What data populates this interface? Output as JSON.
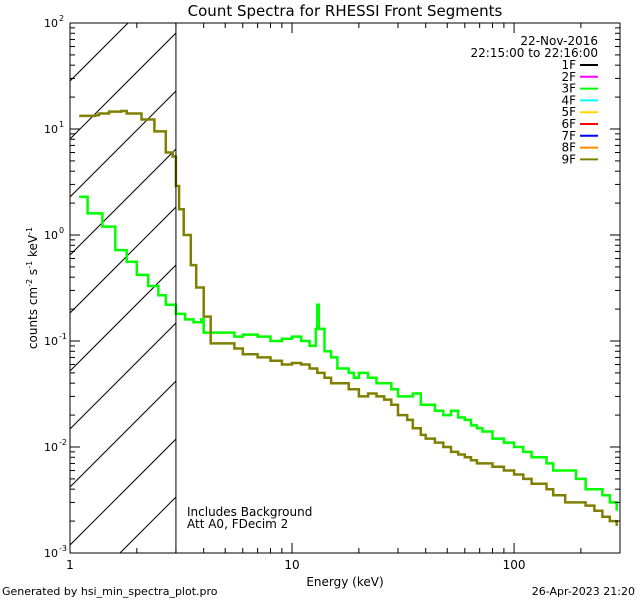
{
  "chart_data": {
    "type": "line",
    "title": "Count Spectra for RHESSI Front Segments",
    "xlabel": "Energy (keV)",
    "ylabel_parts": [
      "counts cm",
      "-2",
      " s",
      "-1",
      " keV",
      "-1"
    ],
    "xscale": "log",
    "yscale": "log",
    "xlim": [
      1,
      300
    ],
    "ylim": [
      0.001,
      100
    ],
    "x_ticks": [
      {
        "value": 1,
        "label": "1"
      },
      {
        "value": 10,
        "label": "10"
      },
      {
        "value": 100,
        "label": "100"
      }
    ],
    "y_ticks": [
      {
        "value": 0.001,
        "base": "10",
        "exp": "-3"
      },
      {
        "value": 0.01,
        "base": "10",
        "exp": "-2"
      },
      {
        "value": 0.1,
        "base": "10",
        "exp": "-1"
      },
      {
        "value": 1,
        "base": "10",
        "exp": "0"
      },
      {
        "value": 10,
        "base": "10",
        "exp": "1"
      },
      {
        "value": 100,
        "base": "10",
        "exp": "2"
      }
    ],
    "hatched_region": {
      "x_from": 1,
      "x_to": 3
    },
    "vertical_line_x": 3,
    "date": "22-Nov-2016",
    "time_range": "22:15:00 to 22:16:00",
    "legend": [
      {
        "name": "1F",
        "color": "#000000"
      },
      {
        "name": "2F",
        "color": "#ff00ff"
      },
      {
        "name": "3F",
        "color": "#00ff00"
      },
      {
        "name": "4F",
        "color": "#00ffff"
      },
      {
        "name": "5F",
        "color": "#ffd700"
      },
      {
        "name": "6F",
        "color": "#ff0000"
      },
      {
        "name": "7F",
        "color": "#0000ff"
      },
      {
        "name": "8F",
        "color": "#ff8c00"
      },
      {
        "name": "9F",
        "color": "#808000"
      }
    ],
    "annotations": [
      "Includes Background",
      "Att A0, FDecim 2"
    ],
    "series": [
      {
        "name": "3F",
        "color": "#00ff00",
        "points": [
          [
            1.1,
            2.3
          ],
          [
            1.2,
            2.3
          ],
          [
            1.2,
            1.6
          ],
          [
            1.4,
            1.6
          ],
          [
            1.4,
            1.2
          ],
          [
            1.6,
            1.2
          ],
          [
            1.6,
            0.72
          ],
          [
            1.8,
            0.72
          ],
          [
            1.8,
            0.56
          ],
          [
            2.0,
            0.56
          ],
          [
            2.0,
            0.42
          ],
          [
            2.25,
            0.42
          ],
          [
            2.25,
            0.33
          ],
          [
            2.5,
            0.33
          ],
          [
            2.5,
            0.27
          ],
          [
            2.7,
            0.27
          ],
          [
            2.7,
            0.22
          ],
          [
            3.0,
            0.22
          ],
          [
            3.0,
            0.18
          ],
          [
            3.3,
            0.16
          ],
          [
            3.6,
            0.15
          ],
          [
            3.9,
            0.16
          ],
          [
            4.0,
            0.16
          ],
          [
            4.0,
            0.12
          ],
          [
            5.0,
            0.12
          ],
          [
            5.5,
            0.11
          ],
          [
            6.0,
            0.115
          ],
          [
            7.0,
            0.11
          ],
          [
            8.0,
            0.1
          ],
          [
            9.0,
            0.105
          ],
          [
            10.0,
            0.11
          ],
          [
            11.0,
            0.1
          ],
          [
            12.0,
            0.09
          ],
          [
            12.8,
            0.13
          ],
          [
            13.0,
            0.22
          ],
          [
            13.2,
            0.13
          ],
          [
            14.0,
            0.08
          ],
          [
            15.0,
            0.07
          ],
          [
            16.0,
            0.055
          ],
          [
            18.0,
            0.05
          ],
          [
            19.0,
            0.045
          ],
          [
            20.0,
            0.05
          ],
          [
            22.0,
            0.045
          ],
          [
            24.0,
            0.04
          ],
          [
            26.0,
            0.04
          ],
          [
            28.0,
            0.035
          ],
          [
            30.0,
            0.03
          ],
          [
            33.0,
            0.03
          ],
          [
            35.0,
            0.032
          ],
          [
            38.0,
            0.025
          ],
          [
            40.0,
            0.025
          ],
          [
            44.0,
            0.022
          ],
          [
            48.0,
            0.02
          ],
          [
            52.0,
            0.022
          ],
          [
            56.0,
            0.019
          ],
          [
            60.0,
            0.018
          ],
          [
            64.0,
            0.016
          ],
          [
            68.0,
            0.015
          ],
          [
            72.0,
            0.014
          ],
          [
            80.0,
            0.012
          ],
          [
            90.0,
            0.011
          ],
          [
            100.0,
            0.01
          ],
          [
            110.0,
            0.009
          ],
          [
            120.0,
            0.008
          ],
          [
            130.0,
            0.008
          ],
          [
            140.0,
            0.007
          ],
          [
            150.0,
            0.006
          ],
          [
            170.0,
            0.006
          ],
          [
            190.0,
            0.005
          ],
          [
            210.0,
            0.004
          ],
          [
            230.0,
            0.004
          ],
          [
            250.0,
            0.0035
          ],
          [
            270.0,
            0.003
          ],
          [
            290.0,
            0.0025
          ]
        ]
      },
      {
        "name": "9F",
        "color": "#808000",
        "points": [
          [
            1.1,
            13.3
          ],
          [
            1.3,
            13.5
          ],
          [
            1.35,
            14.0
          ],
          [
            1.5,
            14.6
          ],
          [
            1.7,
            14.8
          ],
          [
            1.8,
            14.0
          ],
          [
            2.1,
            13.2
          ],
          [
            2.1,
            12.3
          ],
          [
            2.4,
            12.3
          ],
          [
            2.4,
            9.5
          ],
          [
            2.7,
            9.5
          ],
          [
            2.7,
            6.0
          ],
          [
            2.9,
            6.0
          ],
          [
            2.9,
            5.5
          ],
          [
            3.0,
            5.5
          ],
          [
            3.0,
            2.9
          ],
          [
            3.1,
            2.9
          ],
          [
            3.1,
            1.75
          ],
          [
            3.25,
            1.75
          ],
          [
            3.25,
            1.0
          ],
          [
            3.5,
            1.0
          ],
          [
            3.5,
            0.52
          ],
          [
            3.7,
            0.52
          ],
          [
            3.7,
            0.32
          ],
          [
            4.0,
            0.32
          ],
          [
            4.0,
            0.17
          ],
          [
            4.3,
            0.17
          ],
          [
            4.3,
            0.095
          ],
          [
            5.0,
            0.095
          ],
          [
            5.5,
            0.085
          ],
          [
            6.0,
            0.075
          ],
          [
            7.0,
            0.07
          ],
          [
            8.0,
            0.065
          ],
          [
            9.0,
            0.06
          ],
          [
            10.0,
            0.062
          ],
          [
            11.0,
            0.06
          ],
          [
            12.0,
            0.055
          ],
          [
            13.0,
            0.05
          ],
          [
            14.0,
            0.045
          ],
          [
            15.0,
            0.04
          ],
          [
            16.0,
            0.04
          ],
          [
            18.0,
            0.035
          ],
          [
            20.0,
            0.03
          ],
          [
            22.0,
            0.032
          ],
          [
            24.0,
            0.03
          ],
          [
            26.0,
            0.028
          ],
          [
            28.0,
            0.025
          ],
          [
            30.0,
            0.02
          ],
          [
            33.0,
            0.018
          ],
          [
            35.0,
            0.015
          ],
          [
            38.0,
            0.013
          ],
          [
            40.0,
            0.012
          ],
          [
            44.0,
            0.011
          ],
          [
            48.0,
            0.01
          ],
          [
            52.0,
            0.009
          ],
          [
            56.0,
            0.0085
          ],
          [
            60.0,
            0.008
          ],
          [
            64.0,
            0.0075
          ],
          [
            68.0,
            0.007
          ],
          [
            72.0,
            0.007
          ],
          [
            80.0,
            0.0065
          ],
          [
            90.0,
            0.006
          ],
          [
            100.0,
            0.0055
          ],
          [
            110.0,
            0.005
          ],
          [
            120.0,
            0.0045
          ],
          [
            130.0,
            0.0045
          ],
          [
            140.0,
            0.004
          ],
          [
            150.0,
            0.0035
          ],
          [
            170.0,
            0.003
          ],
          [
            190.0,
            0.003
          ],
          [
            210.0,
            0.0028
          ],
          [
            230.0,
            0.0025
          ],
          [
            250.0,
            0.0022
          ],
          [
            270.0,
            0.002
          ],
          [
            290.0,
            0.0018
          ]
        ]
      }
    ]
  },
  "footer": {
    "generated_by": "Generated by hsi_min_spectra_plot.pro",
    "timestamp": "26-Apr-2023 21:20"
  }
}
